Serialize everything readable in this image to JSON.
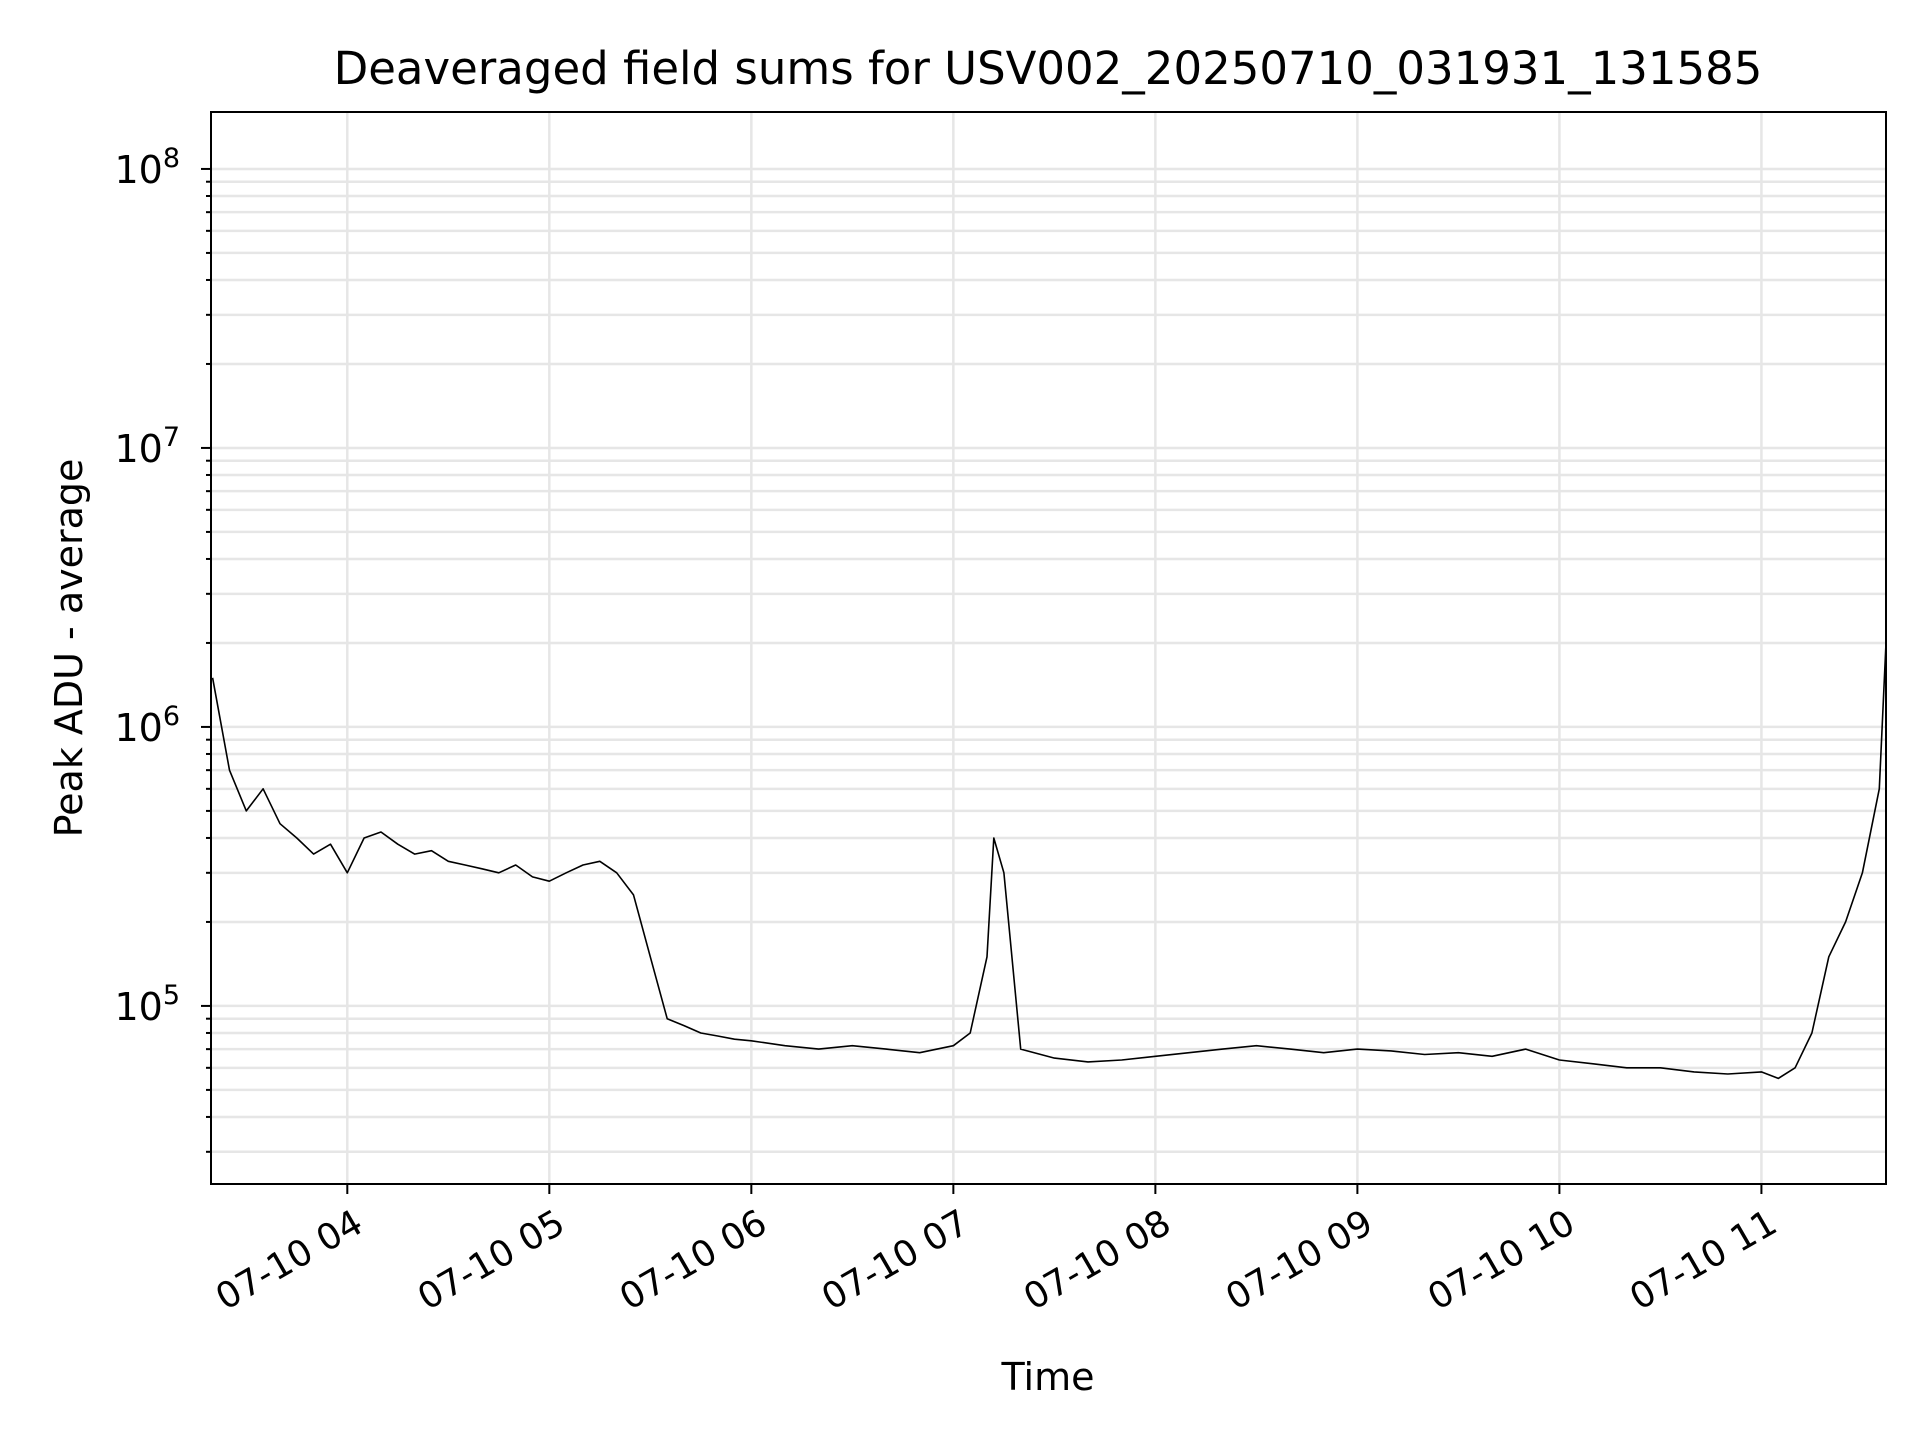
{
  "chart_data": {
    "type": "line",
    "title": "Deaveraged field sums for USV002_20250710_031931_131585",
    "xlabel": "Time",
    "ylabel": "Peak ADU - average",
    "yscale": "log",
    "xlim": [
      "07-10 03:19:31",
      "07-10 11:37"
    ],
    "ylim": [
      23000,
      160000000
    ],
    "grid": true,
    "line_color": "#000000",
    "x_tick_labels": [
      "07-10 04",
      "07-10 05",
      "07-10 06",
      "07-10 07",
      "07-10 08",
      "07-10 09",
      "07-10 10",
      "07-10 11"
    ],
    "y_tick_labels": [
      {
        "value": 100000,
        "base": "10",
        "exp": "5"
      },
      {
        "value": 1000000,
        "base": "10",
        "exp": "6"
      },
      {
        "value": 10000000,
        "base": "10",
        "exp": "7"
      },
      {
        "value": 100000000,
        "base": "10",
        "exp": "8"
      }
    ],
    "series": [
      {
        "x": [
          "03:20",
          "03:25",
          "03:30",
          "03:35",
          "03:40",
          "03:45",
          "03:50",
          "03:55",
          "04:00",
          "04:05",
          "04:10",
          "04:15",
          "04:20",
          "04:25",
          "04:30",
          "04:35",
          "04:40",
          "04:45",
          "04:50",
          "04:55",
          "05:00",
          "05:05",
          "05:10",
          "05:15",
          "05:20",
          "05:25",
          "05:30",
          "05:35",
          "05:40",
          "05:45",
          "05:50",
          "05:55",
          "06:00",
          "06:10",
          "06:20",
          "06:30",
          "06:40",
          "06:50",
          "07:00",
          "07:05",
          "07:10",
          "07:12",
          "07:15",
          "07:20",
          "07:30",
          "07:40",
          "07:50",
          "08:00",
          "08:10",
          "08:20",
          "08:30",
          "08:40",
          "08:50",
          "09:00",
          "09:10",
          "09:20",
          "09:30",
          "09:40",
          "09:50",
          "10:00",
          "10:10",
          "10:20",
          "10:30",
          "10:40",
          "10:50",
          "11:00",
          "11:05",
          "11:10",
          "11:15",
          "11:20",
          "11:25",
          "11:30",
          "11:35",
          "11:37"
        ],
        "y": [
          1500000,
          700000,
          500000,
          600000,
          450000,
          400000,
          350000,
          380000,
          300000,
          400000,
          420000,
          380000,
          350000,
          360000,
          330000,
          320000,
          310000,
          300000,
          320000,
          290000,
          280000,
          300000,
          320000,
          330000,
          300000,
          250000,
          150000,
          90000,
          85000,
          80000,
          78000,
          76000,
          75000,
          72000,
          70000,
          72000,
          70000,
          68000,
          72000,
          80000,
          150000,
          400000,
          300000,
          70000,
          65000,
          63000,
          64000,
          66000,
          68000,
          70000,
          72000,
          70000,
          68000,
          70000,
          69000,
          67000,
          68000,
          66000,
          70000,
          64000,
          62000,
          60000,
          60000,
          58000,
          57000,
          58000,
          55000,
          60000,
          80000,
          150000,
          200000,
          300000,
          600000,
          2000000
        ]
      }
    ]
  }
}
